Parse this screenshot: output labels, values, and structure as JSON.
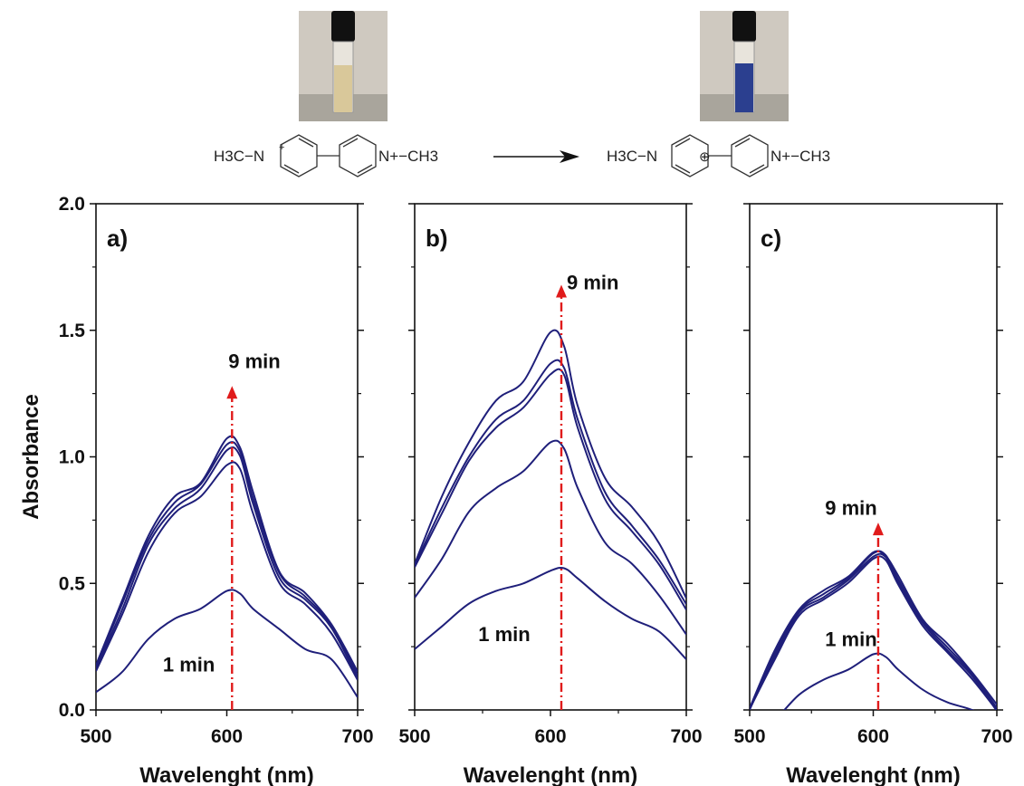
{
  "reaction": {
    "reactant_left": "H3C−N",
    "reactant_charge": "+",
    "reactant_right": "N+−CH3",
    "product_left": "H3C−N",
    "product_radical": "⊕",
    "product_right": "N+−CH3"
  },
  "photos": {
    "before_color": "#d9c89a",
    "after_color": "#2b3f8f"
  },
  "colors": {
    "series": "#1f1f7a",
    "arrow": "#e01b1b",
    "axis": "#111111"
  },
  "chart_data": [
    {
      "type": "line",
      "panel_label": "a)",
      "xlabel": "Wavelenght (nm)",
      "ylabel": "Absorbance",
      "xlim": [
        500,
        700
      ],
      "ylim": [
        0.0,
        2.0
      ],
      "xticks": [
        500,
        600,
        700
      ],
      "yticks": [
        0.0,
        0.5,
        1.0,
        1.5,
        2.0
      ],
      "x": [
        500,
        520,
        540,
        560,
        580,
        600,
        610,
        620,
        640,
        660,
        680,
        700
      ],
      "series": [
        {
          "values": [
            0.07,
            0.15,
            0.28,
            0.36,
            0.4,
            0.47,
            0.46,
            0.4,
            0.32,
            0.24,
            0.2,
            0.05
          ]
        },
        {
          "values": [
            0.15,
            0.38,
            0.62,
            0.78,
            0.84,
            0.97,
            0.95,
            0.78,
            0.5,
            0.42,
            0.3,
            0.12
          ]
        },
        {
          "values": [
            0.16,
            0.4,
            0.65,
            0.8,
            0.87,
            1.03,
            1.0,
            0.82,
            0.52,
            0.44,
            0.32,
            0.13
          ]
        },
        {
          "values": [
            0.17,
            0.42,
            0.67,
            0.82,
            0.89,
            1.05,
            1.02,
            0.84,
            0.54,
            0.45,
            0.33,
            0.14
          ]
        },
        {
          "values": [
            0.18,
            0.43,
            0.69,
            0.84,
            0.9,
            1.07,
            1.04,
            0.86,
            0.55,
            0.46,
            0.34,
            0.15
          ]
        }
      ],
      "arrow_x": 604,
      "arrow_from": 0.0,
      "arrow_to": 1.28,
      "annotation_top": "9 min",
      "annotation_top_pos": [
        1.38
      ],
      "annotation_bottom": "1 min"
    },
    {
      "type": "line",
      "panel_label": "b)",
      "xlabel": "Wavelenght (nm)",
      "ylabel": "",
      "xlim": [
        500,
        700
      ],
      "ylim": [
        0.0,
        2.0
      ],
      "xticks": [
        500,
        600,
        700
      ],
      "yticks": [
        0.0,
        0.5,
        1.0,
        1.5,
        2.0
      ],
      "x": [
        500,
        520,
        540,
        560,
        580,
        600,
        610,
        620,
        640,
        660,
        680,
        700
      ],
      "series": [
        {
          "values": [
            0.24,
            0.33,
            0.42,
            0.47,
            0.5,
            0.55,
            0.56,
            0.52,
            0.43,
            0.36,
            0.31,
            0.2
          ]
        },
        {
          "values": [
            0.44,
            0.6,
            0.78,
            0.88,
            0.94,
            1.06,
            1.03,
            0.88,
            0.66,
            0.58,
            0.45,
            0.3
          ]
        },
        {
          "values": [
            0.56,
            0.78,
            0.98,
            1.12,
            1.19,
            1.33,
            1.32,
            1.12,
            0.83,
            0.71,
            0.57,
            0.4
          ]
        },
        {
          "values": [
            0.57,
            0.8,
            1.0,
            1.15,
            1.22,
            1.37,
            1.35,
            1.15,
            0.86,
            0.73,
            0.59,
            0.42
          ]
        },
        {
          "values": [
            0.58,
            0.84,
            1.06,
            1.22,
            1.3,
            1.49,
            1.44,
            1.2,
            0.92,
            0.8,
            0.66,
            0.44
          ]
        }
      ],
      "arrow_x": 608,
      "arrow_from": 0.0,
      "arrow_to": 1.68,
      "annotation_top": "9 min",
      "annotation_bottom": "1 min"
    },
    {
      "type": "line",
      "panel_label": "c)",
      "xlabel": "Wavelenght (nm)",
      "ylabel": "",
      "xlim": [
        500,
        700
      ],
      "ylim": [
        0.0,
        2.0
      ],
      "xticks": [
        500,
        600,
        700
      ],
      "yticks": [
        0.0,
        0.5,
        1.0,
        1.5,
        2.0
      ],
      "x": [
        500,
        520,
        540,
        560,
        580,
        600,
        610,
        620,
        640,
        660,
        680,
        700
      ],
      "series": [
        {
          "values": [
            -0.1,
            -0.04,
            0.06,
            0.12,
            0.16,
            0.22,
            0.21,
            0.16,
            0.08,
            0.03,
            0.0,
            -0.05
          ]
        },
        {
          "values": [
            0.0,
            0.2,
            0.37,
            0.44,
            0.5,
            0.6,
            0.59,
            0.5,
            0.33,
            0.23,
            0.12,
            0.0
          ]
        },
        {
          "values": [
            0.0,
            0.21,
            0.38,
            0.45,
            0.51,
            0.61,
            0.6,
            0.51,
            0.34,
            0.24,
            0.13,
            0.0
          ]
        },
        {
          "values": [
            0.0,
            0.22,
            0.39,
            0.46,
            0.52,
            0.62,
            0.61,
            0.52,
            0.35,
            0.25,
            0.14,
            0.01
          ]
        },
        {
          "values": [
            0.01,
            0.23,
            0.4,
            0.47,
            0.53,
            0.62,
            0.61,
            0.53,
            0.36,
            0.26,
            0.15,
            0.02
          ]
        }
      ],
      "arrow_x": 604,
      "arrow_from": 0.0,
      "arrow_to": 0.74,
      "annotation_top": "9 min",
      "annotation_bottom": "1 min"
    }
  ]
}
